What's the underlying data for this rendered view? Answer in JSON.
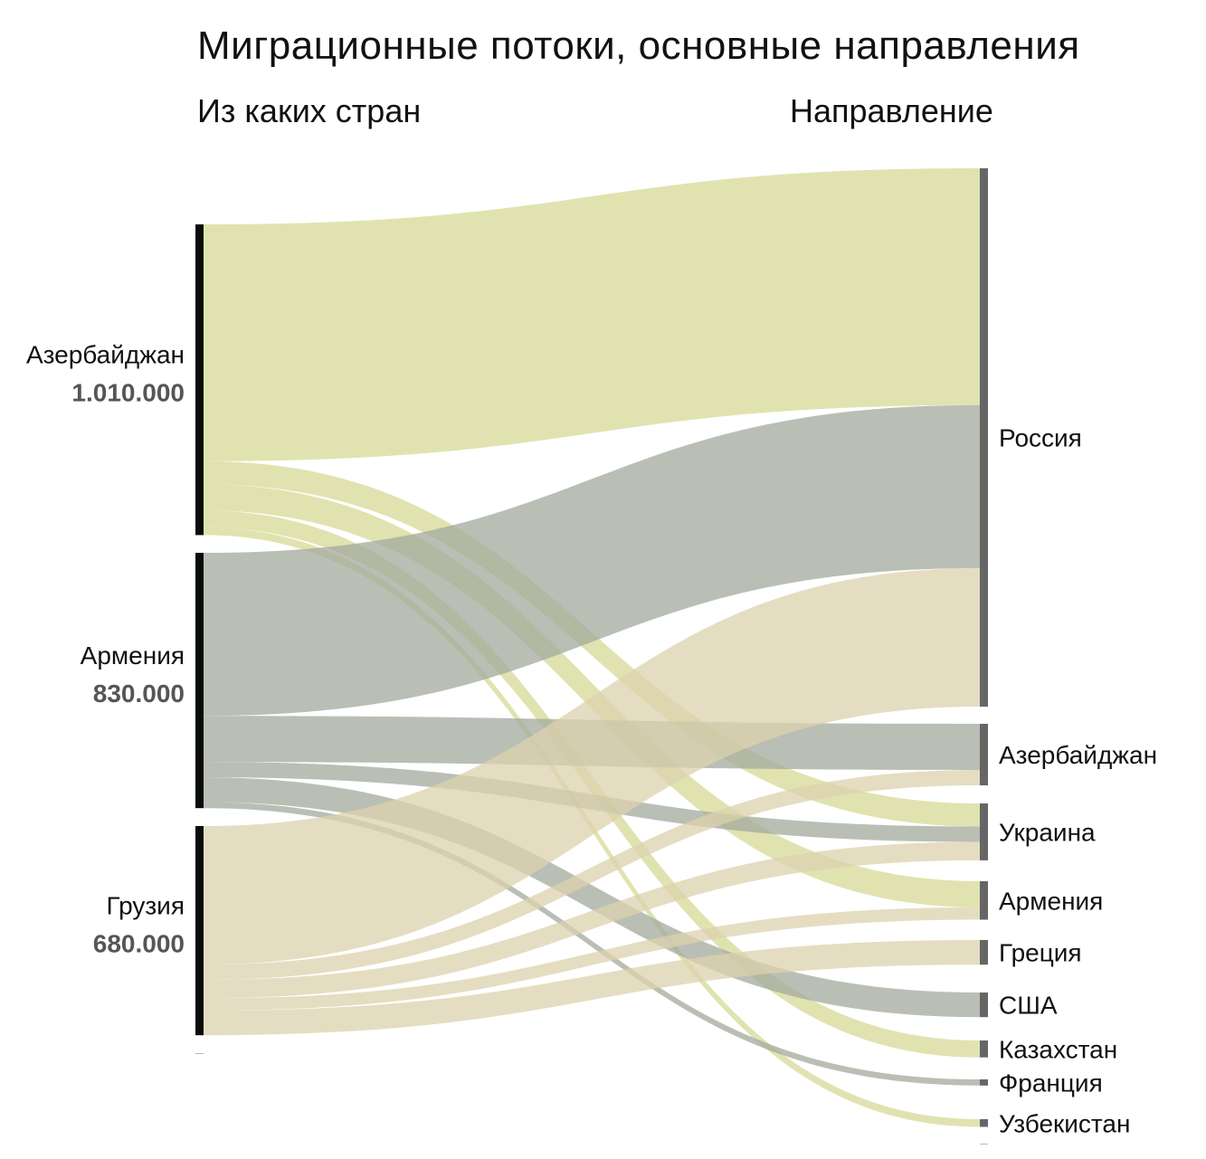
{
  "chart_data": {
    "type": "sankey",
    "title": "Миграционные потоки, основные направления",
    "left_header": "Из каких стран",
    "right_header": "Направление",
    "sources": [
      {
        "name": "Азербайджан",
        "total_label": "1.010.000",
        "total": 1010000,
        "color": "#d6da96"
      },
      {
        "name": "Армения",
        "total_label": "830.000",
        "total": 830000,
        "color": "#a3aa9c"
      },
      {
        "name": "Грузия",
        "total_label": "680.000",
        "total": 680000,
        "color": "#dcd2ae"
      }
    ],
    "targets": [
      "Россия",
      "Азербайджан",
      "Украина",
      "Армения",
      "Греция",
      "США",
      "Казахстан",
      "Франция",
      "Узбекистан"
    ],
    "flows": [
      {
        "from": "Азербайджан",
        "to": "Россия",
        "value": 770000
      },
      {
        "from": "Азербайджан",
        "to": "Украина",
        "value": 75000
      },
      {
        "from": "Азербайджан",
        "to": "Армения",
        "value": 85000
      },
      {
        "from": "Азербайджан",
        "to": "Казахстан",
        "value": 55000
      },
      {
        "from": "Азербайджан",
        "to": "Узбекистан",
        "value": 25000
      },
      {
        "from": "Армения",
        "to": "Россия",
        "value": 530000
      },
      {
        "from": "Армения",
        "to": "Азербайджан",
        "value": 150000
      },
      {
        "from": "Армения",
        "to": "Украина",
        "value": 50000
      },
      {
        "from": "Армения",
        "to": "США",
        "value": 80000
      },
      {
        "from": "Армения",
        "to": "Франция",
        "value": 20000
      },
      {
        "from": "Грузия",
        "to": "Россия",
        "value": 450000
      },
      {
        "from": "Грузия",
        "to": "Азербайджан",
        "value": 50000
      },
      {
        "from": "Грузия",
        "to": "Украина",
        "value": 60000
      },
      {
        "from": "Грузия",
        "to": "Армения",
        "value": 40000
      },
      {
        "from": "Грузия",
        "to": "Греция",
        "value": 80000
      }
    ],
    "source_node_color": "#0a0c0c",
    "target_node_color": "#666666"
  }
}
